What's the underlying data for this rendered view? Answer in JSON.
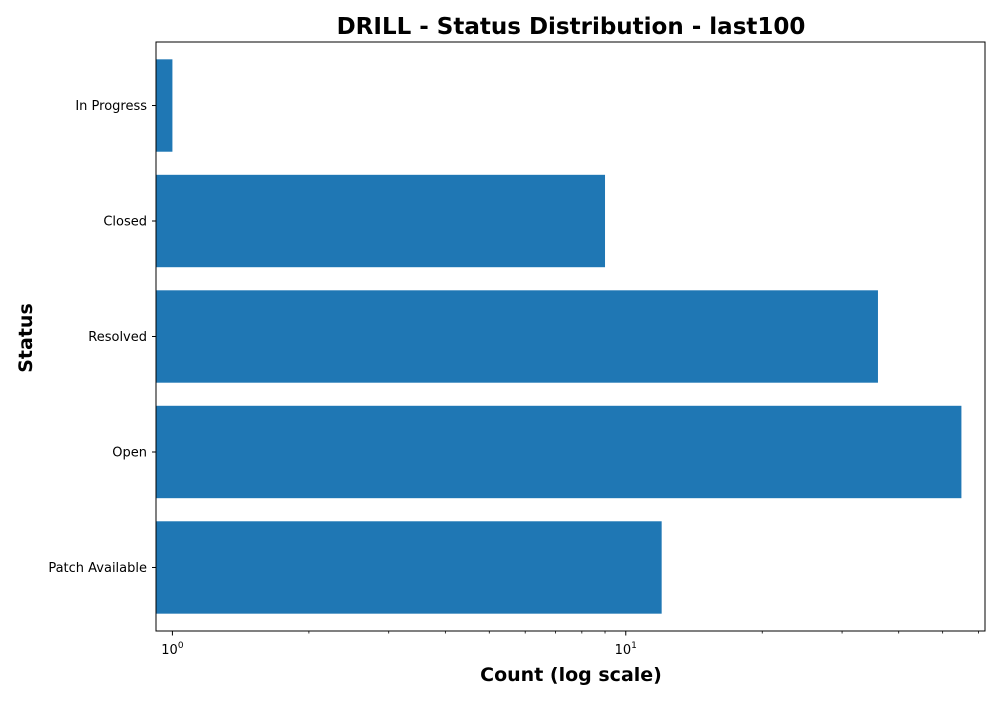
{
  "chart_data": {
    "type": "bar",
    "orientation": "horizontal",
    "title": "DRILL - Status Distribution - last100",
    "xlabel": "Count (log scale)",
    "ylabel": "Status",
    "x_scale": "log",
    "xlim": [
      0.92,
      62
    ],
    "x_major_ticks": [
      {
        "value": 1,
        "base": "10",
        "exponent": "0"
      },
      {
        "value": 10,
        "base": "10",
        "exponent": "1"
      }
    ],
    "categories": [
      "Patch Available",
      "Open",
      "Resolved",
      "Closed",
      "In Progress"
    ],
    "values": [
      12,
      55,
      36,
      9,
      1
    ],
    "bar_color": "#1f77b4",
    "grid": false,
    "legend": "none"
  }
}
